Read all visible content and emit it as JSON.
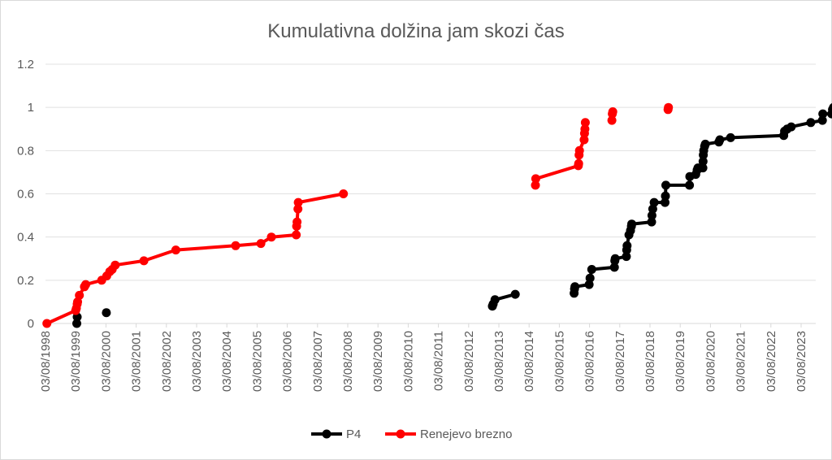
{
  "chart_data": {
    "type": "line",
    "title": "Kumulativna dolžina jam skozi čas",
    "xlabel": "",
    "ylabel": "",
    "ylim": [
      0,
      1.2
    ],
    "yticks": [
      "0",
      "0.2",
      "0.4",
      "0.6",
      "0.8",
      "1",
      "1.2"
    ],
    "xlim": [
      "1998-08-03",
      "2023-12-31"
    ],
    "xticks": [
      "03/08/1998",
      "03/08/1999",
      "03/08/2000",
      "03/08/2001",
      "03/08/2002",
      "03/08/2003",
      "03/08/2004",
      "03/08/2005",
      "03/08/2006",
      "03/08/2007",
      "03/08/2008",
      "03/08/2009",
      "03/08/2010",
      "03/08/2011",
      "03/08/2012",
      "03/08/2013",
      "03/08/2014",
      "03/08/2015",
      "03/08/2016",
      "03/08/2017",
      "03/08/2018",
      "03/08/2019",
      "03/08/2020",
      "03/08/2021",
      "03/08/2022",
      "03/08/2023"
    ],
    "grid": "horizontal",
    "legend_position": "bottom",
    "series": [
      {
        "name": "P4",
        "color": "#000000",
        "segments": [
          [
            [
              "1999-08-15",
              0.0
            ],
            [
              "1999-08-20",
              0.03
            ]
          ],
          [
            [
              "2000-08-05",
              0.05
            ]
          ],
          [
            [
              "2013-05-01",
              0.08
            ],
            [
              "2013-05-10",
              0.09
            ],
            [
              "2013-06-01",
              0.11
            ],
            [
              "2014-02-01",
              0.135
            ]
          ],
          [
            [
              "2016-01-10",
              0.14
            ],
            [
              "2016-01-15",
              0.16
            ],
            [
              "2016-01-20",
              0.17
            ],
            [
              "2016-07-10",
              0.18
            ],
            [
              "2016-07-20",
              0.21
            ],
            [
              "2016-08-10",
              0.25
            ],
            [
              "2017-05-10",
              0.26
            ],
            [
              "2017-05-15",
              0.29
            ],
            [
              "2017-05-20",
              0.3
            ],
            [
              "2017-10-01",
              0.31
            ],
            [
              "2017-10-05",
              0.34
            ],
            [
              "2017-10-10",
              0.36
            ],
            [
              "2017-11-01",
              0.41
            ],
            [
              "2017-11-20",
              0.43
            ],
            [
              "2017-12-01",
              0.45
            ],
            [
              "2017-12-05",
              0.46
            ],
            [
              "2018-08-01",
              0.47
            ],
            [
              "2018-08-05",
              0.5
            ],
            [
              "2018-08-15",
              0.53
            ],
            [
              "2018-09-01",
              0.56
            ],
            [
              "2019-01-10",
              0.56
            ],
            [
              "2019-01-15",
              0.59
            ],
            [
              "2019-01-20",
              0.64
            ],
            [
              "2019-11-01",
              0.64
            ],
            [
              "2019-11-05",
              0.68
            ],
            [
              "2020-01-15",
              0.69
            ],
            [
              "2020-02-01",
              0.71
            ],
            [
              "2020-02-10",
              0.72
            ],
            [
              "2020-04-10",
              0.72
            ],
            [
              "2020-04-12",
              0.75
            ],
            [
              "2020-04-15",
              0.78
            ],
            [
              "2020-04-20",
              0.8
            ],
            [
              "2020-05-01",
              0.82
            ],
            [
              "2020-05-10",
              0.83
            ],
            [
              "2020-10-20",
              0.84
            ],
            [
              "2020-11-01",
              0.85
            ],
            [
              "2021-03-10",
              0.86
            ],
            [
              "2022-12-10",
              0.87
            ],
            [
              "2022-12-20",
              0.89
            ],
            [
              "2023-01-20",
              0.9
            ],
            [
              "2023-03-10",
              0.91
            ],
            [
              "2023-11-01",
              0.93
            ],
            [
              "2024-03-20",
              0.94
            ],
            [
              "2024-03-25",
              0.97
            ],
            [
              "2024-07-10",
              0.97
            ],
            [
              "2024-07-20",
              0.99
            ],
            [
              "2024-08-01",
              1.0
            ]
          ]
        ]
      },
      {
        "name": "Renejevo brezno",
        "color": "#ff0000",
        "segments": [
          [
            [
              "1998-08-20",
              0.0
            ],
            [
              "1999-08-01",
              0.06
            ],
            [
              "1999-08-10",
              0.07
            ],
            [
              "1999-08-20",
              0.09
            ],
            [
              "1999-08-25",
              0.1
            ],
            [
              "1999-09-15",
              0.13
            ],
            [
              "1999-11-15",
              0.17
            ],
            [
              "1999-12-01",
              0.18
            ],
            [
              "2000-06-10",
              0.2
            ],
            [
              "2000-08-10",
              0.22
            ],
            [
              "2000-09-15",
              0.24
            ],
            [
              "2000-10-15",
              0.25
            ],
            [
              "2000-11-20",
              0.27
            ],
            [
              "2001-11-01",
              0.29
            ],
            [
              "2002-11-20",
              0.34
            ],
            [
              "2004-11-10",
              0.36
            ],
            [
              "2005-09-10",
              0.37
            ],
            [
              "2006-01-15",
              0.4
            ],
            [
              "2006-11-10",
              0.41
            ],
            [
              "2006-11-15",
              0.45
            ],
            [
              "2006-11-20",
              0.47
            ],
            [
              "2006-12-01",
              0.53
            ],
            [
              "2006-12-05",
              0.56
            ],
            [
              "2008-06-01",
              0.6
            ]
          ],
          [
            [
              "2014-10-01",
              0.64
            ],
            [
              "2014-10-05",
              0.67
            ],
            [
              "2016-03-01",
              0.73
            ],
            [
              "2016-03-05",
              0.74
            ],
            [
              "2016-03-10",
              0.78
            ],
            [
              "2016-03-15",
              0.8
            ],
            [
              "2016-05-10",
              0.85
            ],
            [
              "2016-05-15",
              0.88
            ],
            [
              "2016-05-20",
              0.9
            ],
            [
              "2016-05-25",
              0.93
            ]
          ],
          [
            [
              "2017-04-10",
              0.94
            ],
            [
              "2017-04-15",
              0.97
            ],
            [
              "2017-04-20",
              0.98
            ]
          ],
          [
            [
              "2019-02-15",
              0.99
            ],
            [
              "2019-02-20",
              1.0
            ]
          ]
        ]
      }
    ]
  }
}
